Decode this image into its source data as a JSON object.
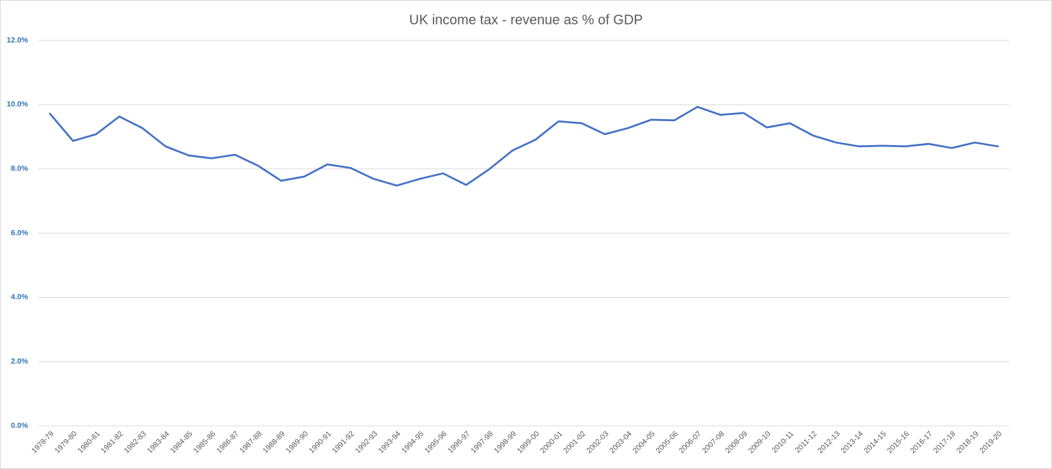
{
  "chart_data": {
    "type": "line",
    "title": "UK income tax - revenue as % of GDP",
    "categories": [
      "1978-79",
      "1979-80",
      "1980-81",
      "1981-82",
      "1982-83",
      "1983-84",
      "1984-85",
      "1985-86",
      "1986-87",
      "1987-88",
      "1988-89",
      "1989-90",
      "1990-91",
      "1991-92",
      "1992-93",
      "1993-94",
      "1994-95",
      "1995-96",
      "1996-97",
      "1997-98",
      "1998-99",
      "1999-00",
      "2000-01",
      "2001-02",
      "2002-03",
      "2003-04",
      "2004-05",
      "2005-06",
      "2006-07",
      "2007-08",
      "2008-09",
      "2009-10",
      "2010-11",
      "2011-12",
      "2012-13",
      "2013-14",
      "2014-15",
      "2015-16",
      "2016-17",
      "2017-18",
      "2018-19",
      "2019-20"
    ],
    "values": [
      9.72,
      8.87,
      9.08,
      9.63,
      9.27,
      8.7,
      8.42,
      8.33,
      8.44,
      8.1,
      7.63,
      7.76,
      8.14,
      8.03,
      7.69,
      7.48,
      7.69,
      7.86,
      7.5,
      7.99,
      8.57,
      8.91,
      9.48,
      9.42,
      9.08,
      9.27,
      9.53,
      9.51,
      9.93,
      9.68,
      9.74,
      9.29,
      9.42,
      9.04,
      8.82,
      8.7,
      8.72,
      8.7,
      8.78,
      8.65,
      8.82,
      8.7
    ],
    "color": "#4472c4",
    "ylim": [
      0,
      12
    ],
    "yticks": [
      {
        "value": 0,
        "label": "0.0%"
      },
      {
        "value": 2,
        "label": "2.0%"
      },
      {
        "value": 4,
        "label": "4.0%"
      },
      {
        "value": 6,
        "label": "6.0%"
      },
      {
        "value": 8,
        "label": "8.0%"
      },
      {
        "value": 10,
        "label": "10.0%"
      },
      {
        "value": 12,
        "label": "12.0%"
      }
    ],
    "grid": true
  }
}
